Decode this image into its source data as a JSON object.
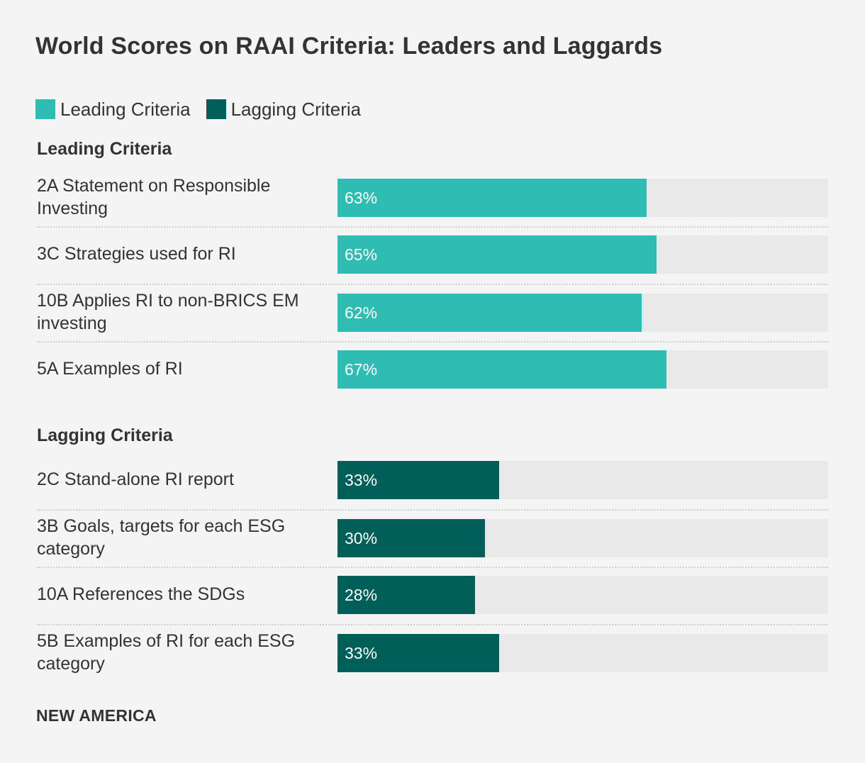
{
  "title": "World Scores on RAAI Criteria: Leaders and Laggards",
  "legend": [
    {
      "label": "Leading Criteria",
      "color": "#2fbcb2"
    },
    {
      "label": "Lagging Criteria",
      "color": "#005f58"
    }
  ],
  "brand": "NEW AMERICA",
  "chart_data": {
    "type": "bar",
    "orientation": "horizontal",
    "title": "World Scores on RAAI Criteria: Leaders and Laggards",
    "value_format": "percent",
    "xlim": [
      0,
      100
    ],
    "groups": [
      {
        "heading": "Leading Criteria",
        "color": "#2fbcb2",
        "categories": [
          "2A Statement on Responsible Investing",
          "3C Strategies used for RI",
          "10B Applies RI to non-BRICS EM investing",
          "5A Examples of RI"
        ],
        "values": [
          63,
          65,
          62,
          67
        ],
        "value_labels": [
          "63%",
          "65%",
          "62%",
          "67%"
        ]
      },
      {
        "heading": "Lagging Criteria",
        "color": "#005f58",
        "categories": [
          "2C Stand-alone RI report",
          "3B Goals, targets for each ESG category",
          "10A References the SDGs",
          "5B Examples of RI for each ESG category"
        ],
        "values": [
          33,
          30,
          28,
          33
        ],
        "value_labels": [
          "33%",
          "30%",
          "28%",
          "33%"
        ]
      }
    ]
  }
}
